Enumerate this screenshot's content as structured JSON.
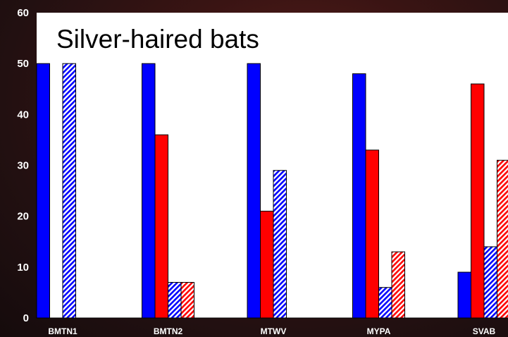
{
  "chart_data": {
    "type": "bar",
    "title": "Silver-haired bats",
    "xlabel": "",
    "ylabel": "",
    "ylim": [
      0,
      60
    ],
    "yticks": [
      0,
      10,
      20,
      30,
      40,
      50,
      60
    ],
    "grid": false,
    "categories": [
      "BMTN1",
      "BMTN2",
      "MTWV",
      "MYPA",
      "SVAB"
    ],
    "series": [
      {
        "color": "#0000ff",
        "pattern": "solid",
        "values": [
          50,
          50,
          50,
          48,
          9
        ]
      },
      {
        "color": "#ff0000",
        "pattern": "solid",
        "values": [
          0,
          36,
          21,
          33,
          46
        ]
      },
      {
        "color": "#0000ff",
        "pattern": "hatched",
        "values": [
          50,
          7,
          29,
          6,
          14
        ]
      },
      {
        "color": "#ff0000",
        "pattern": "hatched",
        "values": [
          0,
          7,
          0,
          13,
          31
        ]
      }
    ]
  },
  "colors": {
    "plot_background": "#ffffff",
    "axis_text": "#ffffff",
    "title_text": "#000000"
  }
}
